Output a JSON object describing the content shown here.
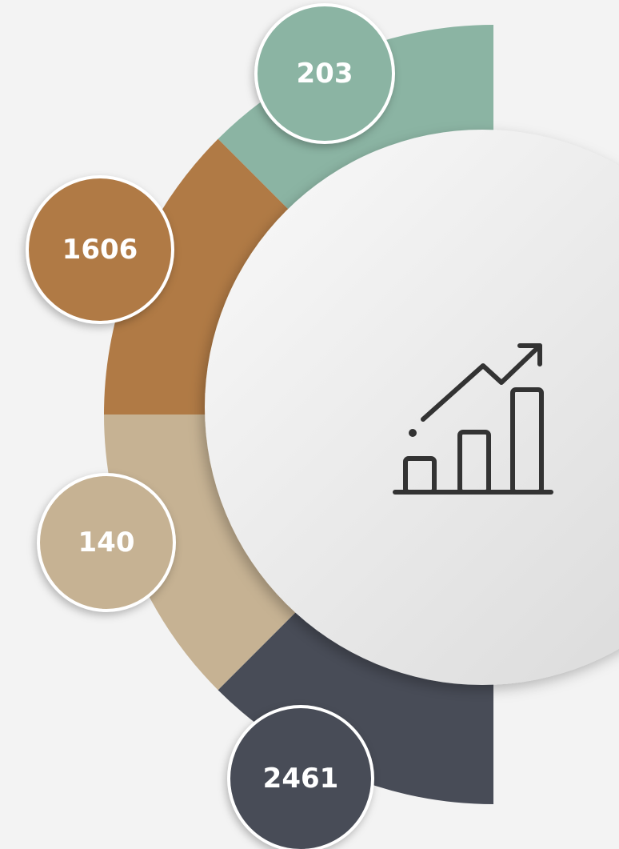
{
  "items": [
    {
      "label": "203",
      "color": "#8bb4a3"
    },
    {
      "label": "1606",
      "color": "#b07a45"
    },
    {
      "label": "140",
      "color": "#c6b293"
    },
    {
      "label": "2461",
      "color": "#484c57"
    }
  ]
}
